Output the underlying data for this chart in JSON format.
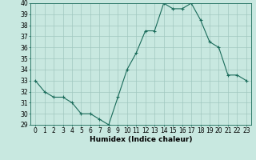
{
  "x": [
    0,
    1,
    2,
    3,
    4,
    5,
    6,
    7,
    8,
    9,
    10,
    11,
    12,
    13,
    14,
    15,
    16,
    17,
    18,
    19,
    20,
    21,
    22,
    23
  ],
  "y": [
    33,
    32,
    31.5,
    31.5,
    31,
    30,
    30,
    29.5,
    29,
    31.5,
    34,
    35.5,
    37.5,
    37.5,
    40,
    39.5,
    39.5,
    40,
    38.5,
    36.5,
    36,
    33.5,
    33.5,
    33
  ],
  "line_color": "#1a6b5a",
  "marker_color": "#1a6b5a",
  "background_color": "#c8e8e0",
  "grid_color": "#a0c8c0",
  "xlabel": "Humidex (Indice chaleur)",
  "ylim": [
    29,
    40
  ],
  "xlim": [
    -0.5,
    23.5
  ],
  "yticks": [
    29,
    30,
    31,
    32,
    33,
    34,
    35,
    36,
    37,
    38,
    39,
    40
  ],
  "xticks": [
    0,
    1,
    2,
    3,
    4,
    5,
    6,
    7,
    8,
    9,
    10,
    11,
    12,
    13,
    14,
    15,
    16,
    17,
    18,
    19,
    20,
    21,
    22,
    23
  ],
  "tick_label_fontsize": 5.5,
  "xlabel_fontsize": 6.5
}
